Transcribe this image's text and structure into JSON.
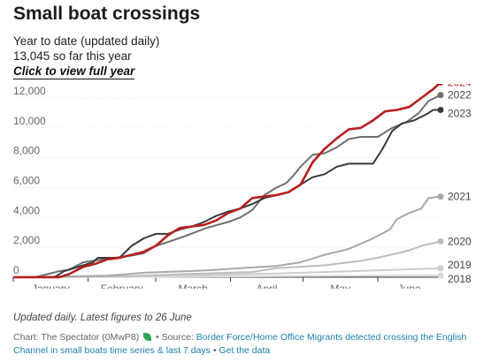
{
  "header": {
    "title": "Small boat crossings",
    "subtitle": "Year to date (updated daily)",
    "summary": "13,045 so far this year",
    "toggle_label": "Click to view full year"
  },
  "footer": {
    "note": "Updated daily. Latest figures to 26 June",
    "credit_prefix": "Chart: The Spectator (0MwP8)",
    "source_prefix": "• Source:",
    "source_link": "Border Force/Home Office Migrants detected crossing the English Channel in small boats time series & last 7 days",
    "get_data_link": "Get the data"
  },
  "chart_data": {
    "type": "line",
    "xlabel": "",
    "ylabel": "",
    "x_unit": "day of year",
    "xlim": [
      1,
      178
    ],
    "ylim": [
      0,
      12000
    ],
    "y_ticks": [
      0,
      2000,
      4000,
      6000,
      8000,
      10000,
      12000
    ],
    "y_tick_labels": [
      "0",
      "2,000",
      "4,000",
      "6,000",
      "8,000",
      "10,000",
      "12,000"
    ],
    "x_ticks": [
      {
        "label": "January",
        "x": 1
      },
      {
        "label": "February",
        "x": 32
      },
      {
        "label": "March",
        "x": 60
      },
      {
        "label": "April",
        "x": 91
      },
      {
        "label": "May",
        "x": 121
      },
      {
        "label": "June",
        "x": 152
      }
    ],
    "grid": true,
    "legend": "direct labels at line ends",
    "series": [
      {
        "name": "2018",
        "color": "#d8d8d8",
        "width": 2,
        "points": [
          [
            1,
            0
          ],
          [
            60,
            30
          ],
          [
            100,
            60
          ],
          [
            140,
            90
          ],
          [
            178,
            120
          ]
        ]
      },
      {
        "name": "2019",
        "color": "#cccccc",
        "width": 2,
        "points": [
          [
            1,
            0
          ],
          [
            40,
            60
          ],
          [
            80,
            150
          ],
          [
            110,
            250
          ],
          [
            140,
            400
          ],
          [
            160,
            500
          ],
          [
            178,
            600
          ]
        ]
      },
      {
        "name": "2020",
        "color": "#bdbdbd",
        "width": 2,
        "points": [
          [
            1,
            0
          ],
          [
            50,
            80
          ],
          [
            70,
            200
          ],
          [
            100,
            350
          ],
          [
            110,
            600
          ],
          [
            130,
            800
          ],
          [
            145,
            1100
          ],
          [
            152,
            1300
          ],
          [
            165,
            1800
          ],
          [
            170,
            2100
          ],
          [
            178,
            2400
          ]
        ]
      },
      {
        "name": "2021",
        "color": "#a8a8a8",
        "width": 2,
        "points": [
          [
            1,
            0
          ],
          [
            25,
            60
          ],
          [
            40,
            100
          ],
          [
            55,
            300
          ],
          [
            80,
            450
          ],
          [
            95,
            600
          ],
          [
            110,
            750
          ],
          [
            120,
            1000
          ],
          [
            130,
            1500
          ],
          [
            140,
            1900
          ],
          [
            150,
            2600
          ],
          [
            157,
            3200
          ],
          [
            160,
            3900
          ],
          [
            165,
            4300
          ],
          [
            170,
            4600
          ],
          [
            173,
            5300
          ],
          [
            178,
            5400
          ]
        ]
      },
      {
        "name": "2022",
        "color": "#6f6f6f",
        "width": 2,
        "points": [
          [
            1,
            0
          ],
          [
            10,
            0
          ],
          [
            20,
            400
          ],
          [
            24,
            500
          ],
          [
            30,
            1000
          ],
          [
            40,
            1250
          ],
          [
            50,
            1450
          ],
          [
            55,
            1600
          ],
          [
            60,
            2100
          ],
          [
            65,
            2350
          ],
          [
            73,
            2800
          ],
          [
            81,
            3300
          ],
          [
            90,
            3700
          ],
          [
            95,
            4000
          ],
          [
            100,
            4500
          ],
          [
            105,
            5500
          ],
          [
            110,
            6000
          ],
          [
            114,
            6300
          ],
          [
            117,
            6800
          ],
          [
            120,
            7400
          ],
          [
            125,
            8200
          ],
          [
            130,
            8300
          ],
          [
            135,
            8700
          ],
          [
            140,
            9250
          ],
          [
            145,
            9400
          ],
          [
            152,
            9400
          ],
          [
            158,
            10000
          ],
          [
            164,
            10400
          ],
          [
            169,
            11000
          ],
          [
            173,
            11800
          ],
          [
            178,
            12200
          ]
        ]
      },
      {
        "name": "2023",
        "color": "#3a3a3a",
        "width": 2,
        "points": [
          [
            1,
            0
          ],
          [
            18,
            0
          ],
          [
            22,
            400
          ],
          [
            30,
            800
          ],
          [
            34,
            1000
          ],
          [
            36,
            1300
          ],
          [
            45,
            1300
          ],
          [
            50,
            2100
          ],
          [
            55,
            2600
          ],
          [
            60,
            2900
          ],
          [
            65,
            2900
          ],
          [
            70,
            3200
          ],
          [
            75,
            3400
          ],
          [
            80,
            3700
          ],
          [
            85,
            4100
          ],
          [
            90,
            4400
          ],
          [
            95,
            4600
          ],
          [
            100,
            4900
          ],
          [
            105,
            5300
          ],
          [
            110,
            5500
          ],
          [
            115,
            5700
          ],
          [
            120,
            6200
          ],
          [
            125,
            6700
          ],
          [
            130,
            6900
          ],
          [
            135,
            7400
          ],
          [
            140,
            7600
          ],
          [
            150,
            7600
          ],
          [
            154,
            8600
          ],
          [
            158,
            9800
          ],
          [
            162,
            10300
          ],
          [
            167,
            10500
          ],
          [
            172,
            10900
          ],
          [
            175,
            11200
          ],
          [
            178,
            11200
          ]
        ]
      },
      {
        "name": "2024",
        "color": "#b81e1e",
        "width": 2.6,
        "points": [
          [
            1,
            0
          ],
          [
            20,
            0
          ],
          [
            24,
            200
          ],
          [
            30,
            700
          ],
          [
            35,
            900
          ],
          [
            40,
            1200
          ],
          [
            45,
            1300
          ],
          [
            50,
            1500
          ],
          [
            55,
            1700
          ],
          [
            60,
            2100
          ],
          [
            65,
            2800
          ],
          [
            70,
            3300
          ],
          [
            75,
            3400
          ],
          [
            80,
            3500
          ],
          [
            85,
            3800
          ],
          [
            90,
            4300
          ],
          [
            95,
            4600
          ],
          [
            100,
            5300
          ],
          [
            105,
            5400
          ],
          [
            110,
            5500
          ],
          [
            115,
            5700
          ],
          [
            120,
            6200
          ],
          [
            125,
            7700
          ],
          [
            130,
            8600
          ],
          [
            135,
            9300
          ],
          [
            140,
            9900
          ],
          [
            145,
            10000
          ],
          [
            150,
            10500
          ],
          [
            155,
            11100
          ],
          [
            160,
            11200
          ],
          [
            165,
            11400
          ],
          [
            170,
            12000
          ],
          [
            175,
            12600
          ],
          [
            178,
            13045
          ]
        ]
      }
    ]
  }
}
